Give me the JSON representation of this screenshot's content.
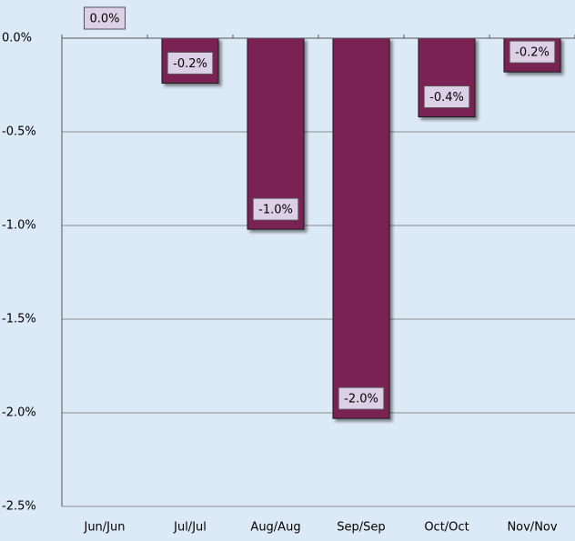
{
  "chart_data": {
    "type": "bar",
    "categories": [
      "Jun/Jun",
      "Jul/Jul",
      "Aug/Aug",
      "Sep/Sep",
      "Oct/Oct",
      "Nov/Nov"
    ],
    "values": [
      0,
      -0.24,
      -1.02,
      -2.03,
      -0.42,
      -0.18
    ],
    "value_labels": [
      "0.0%",
      "-0.2%",
      "-1.0%",
      "-2.0%",
      "-0.4%",
      "-0.2%"
    ],
    "color": "#7a2152",
    "ylim": [
      -2.5,
      0
    ],
    "yticks": [
      {
        "value": 0,
        "label": "0.0%"
      },
      {
        "value": -0.5,
        "label": "-0.5%"
      },
      {
        "value": -1,
        "label": "-1.0%"
      },
      {
        "value": -1.5,
        "label": "-1.5%"
      },
      {
        "value": -2,
        "label": "-2.0%"
      },
      {
        "value": -2.5,
        "label": "-2.5%"
      }
    ],
    "grid": true
  }
}
